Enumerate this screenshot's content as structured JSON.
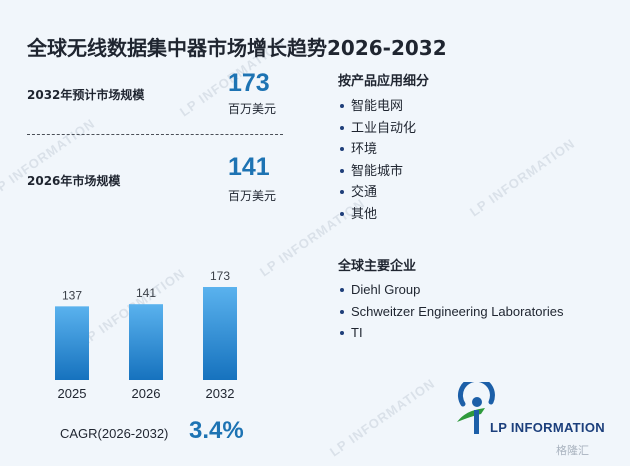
{
  "title": "全球无线数据集中器市场增长趋势2026-2032",
  "metrics": [
    {
      "label": "2032年预计市场规模",
      "value": "173",
      "unit": "百万美元"
    },
    {
      "label": "2026年市场规模",
      "value": "141",
      "unit": "百万美元"
    }
  ],
  "segments": {
    "title": "按产品应用细分",
    "items": [
      "智能电网",
      "工业自动化",
      "环境",
      "智能城市",
      "交通",
      "其他"
    ]
  },
  "companies": {
    "title": "全球主要企业",
    "items": [
      "Diehl Group",
      "Schweitzer Engineering Laboratories",
      "TI"
    ]
  },
  "cagr": {
    "label": "CAGR(2026-2032)",
    "value": "3.4%"
  },
  "logo": {
    "text": "LP INFORMATION"
  },
  "watermark": {
    "text": "LP INFORMATION"
  },
  "corner_brand": "格隆汇",
  "colors": {
    "accent": "#1d73b3",
    "bar_top": "#5ab2ee",
    "bar_bottom": "#1672be",
    "background": "#f1f6fb"
  },
  "chart_data": {
    "type": "bar",
    "categories": [
      "2025",
      "2026",
      "2032"
    ],
    "values": [
      137,
      141,
      173
    ],
    "title": "",
    "xlabel": "",
    "ylabel": "",
    "ylim": [
      0,
      173
    ],
    "grid": false,
    "legend": "none"
  }
}
